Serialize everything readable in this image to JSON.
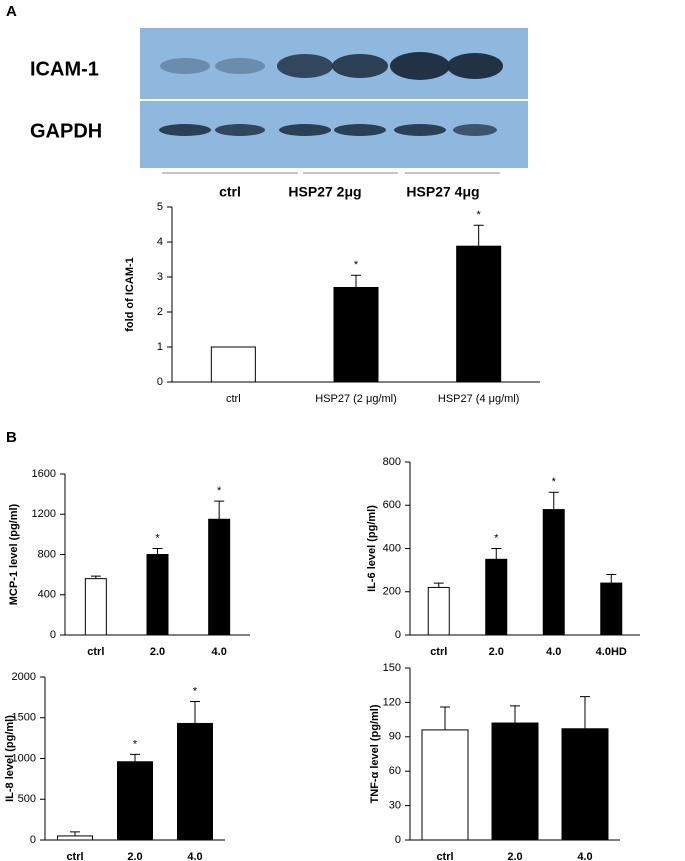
{
  "panel_labels": [
    "A",
    "B"
  ],
  "blot": {
    "rows": [
      "ICAM-1",
      "GAPDH"
    ],
    "groups": [
      "ctrl",
      "HSP27 2μg",
      "HSP27 4μg"
    ]
  },
  "chart_data": [
    {
      "type": "bar",
      "y_label": "fold of ICAM-1",
      "categories": [
        "ctrl",
        "HSP27 (2 μg/ml)",
        "HSP27 (4 μg/ml)"
      ],
      "values": [
        1,
        2.7,
        3.88
      ],
      "errors": [
        0,
        0.35,
        0.6
      ],
      "annotations": [
        null,
        "*",
        "*"
      ],
      "colors": [
        "#ffffff",
        "#000000",
        "#000000"
      ],
      "ylim": [
        0,
        5
      ],
      "yticks": [
        0,
        1,
        2,
        3,
        4,
        5
      ]
    },
    {
      "type": "bar",
      "y_label": "MCP-1 level (pg/ml)",
      "categories": [
        "ctrl",
        "2.0",
        "4.0"
      ],
      "values": [
        560,
        800,
        1150
      ],
      "errors": [
        25,
        60,
        180
      ],
      "annotations": [
        null,
        "*",
        "*"
      ],
      "colors": [
        "#ffffff",
        "#000000",
        "#000000"
      ],
      "ylim": [
        0,
        1600
      ],
      "yticks": [
        0,
        400,
        800,
        1200,
        1600
      ]
    },
    {
      "type": "bar",
      "y_label": "IL-6 level (pg/ml)",
      "categories": [
        "ctrl",
        "2.0",
        "4.0",
        "4.0HD"
      ],
      "values": [
        220,
        350,
        580,
        240
      ],
      "errors": [
        20,
        50,
        80,
        40
      ],
      "annotations": [
        null,
        "*",
        "*",
        null
      ],
      "colors": [
        "#ffffff",
        "#000000",
        "#000000",
        "#000000"
      ],
      "ylim": [
        0,
        800
      ],
      "yticks": [
        0,
        200,
        400,
        600,
        800
      ]
    },
    {
      "type": "bar",
      "y_label": "IL-8 level (pg/ml)",
      "categories": [
        "ctrl",
        "2.0",
        "4.0"
      ],
      "values": [
        50,
        960,
        1430
      ],
      "errors": [
        50,
        90,
        270
      ],
      "annotations": [
        null,
        "*",
        "*"
      ],
      "colors": [
        "#ffffff",
        "#000000",
        "#000000"
      ],
      "ylim": [
        0,
        2000
      ],
      "yticks": [
        0,
        500,
        1000,
        1500,
        2000
      ]
    },
    {
      "type": "bar",
      "y_label": "TNF-α level (pg/ml)",
      "categories": [
        "ctrl",
        "2.0",
        "4.0"
      ],
      "values": [
        96,
        102,
        97
      ],
      "errors": [
        20,
        15,
        28
      ],
      "annotations": [
        null,
        null,
        null
      ],
      "colors": [
        "#ffffff",
        "#000000",
        "#000000"
      ],
      "ylim": [
        0,
        150
      ],
      "yticks": [
        0,
        30,
        60,
        90,
        120,
        150
      ]
    }
  ]
}
